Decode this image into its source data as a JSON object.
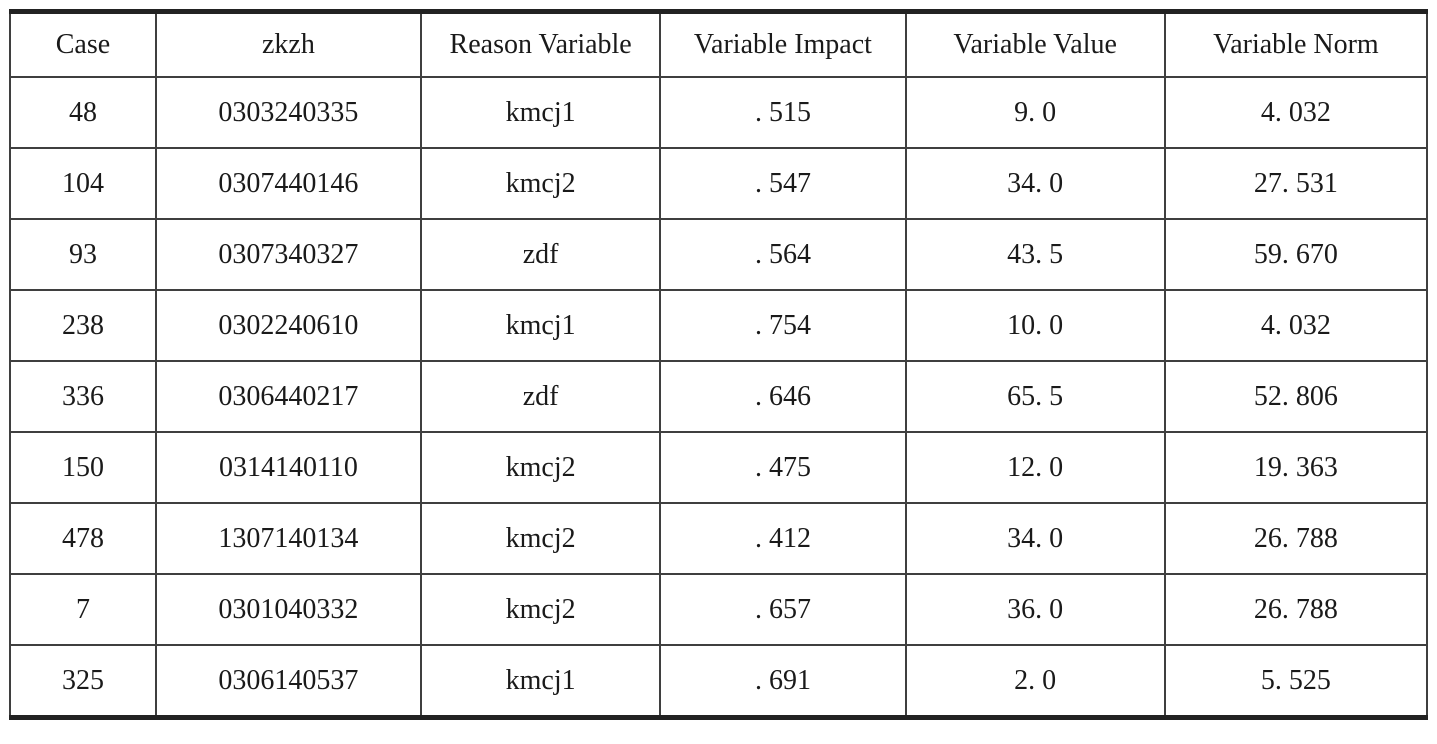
{
  "table": {
    "columns": [
      "Case",
      "zkzh",
      "Reason Variable",
      "Variable Impact",
      "Variable Value",
      "Variable Norm"
    ],
    "rows": [
      [
        "48",
        "0303240335",
        "kmcj1",
        ". 515",
        "9. 0",
        "4. 032"
      ],
      [
        "104",
        "0307440146",
        "kmcj2",
        ". 547",
        "34. 0",
        "27. 531"
      ],
      [
        "93",
        "0307340327",
        "zdf",
        ". 564",
        "43. 5",
        "59. 670"
      ],
      [
        "238",
        "0302240610",
        "kmcj1",
        ". 754",
        "10. 0",
        "4. 032"
      ],
      [
        "336",
        "0306440217",
        "zdf",
        ". 646",
        "65. 5",
        "52. 806"
      ],
      [
        "150",
        "0314140110",
        "kmcj2",
        ". 475",
        "12. 0",
        "19. 363"
      ],
      [
        "478",
        "1307140134",
        "kmcj2",
        ". 412",
        "34. 0",
        "26. 788"
      ],
      [
        "7",
        "0301040332",
        "kmcj2",
        ". 657",
        "36. 0",
        "26. 788"
      ],
      [
        "325",
        "0306140537",
        "kmcj1",
        ". 691",
        "2. 0",
        "5. 525"
      ]
    ],
    "text_color": "#1a1a1a",
    "rule_color": "#222222"
  }
}
